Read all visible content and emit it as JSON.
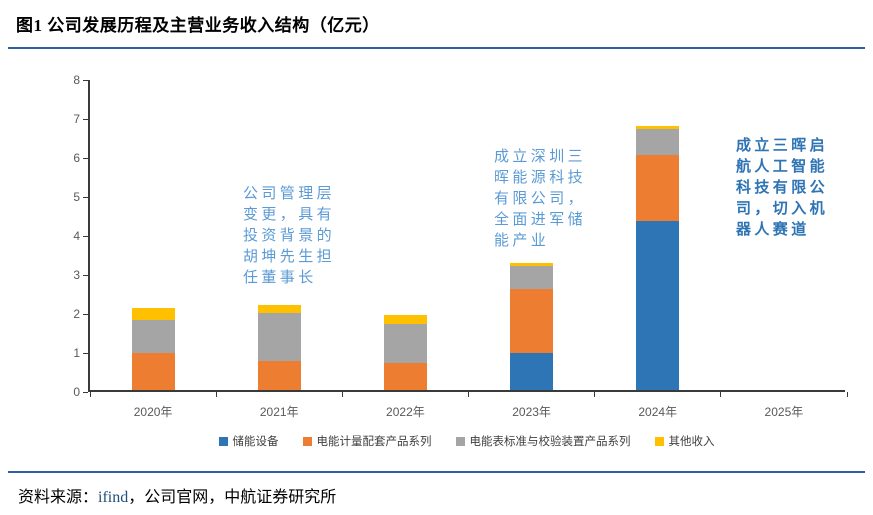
{
  "header": {
    "title": "图1  公司发展历程及主营业务收入结构（亿元）"
  },
  "chart_data": {
    "type": "bar",
    "stacked": true,
    "title": "公司发展历程及主营业务收入结构（亿元）",
    "categories": [
      "2020年",
      "2021年",
      "2022年",
      "2023年",
      "2024年",
      "2025年"
    ],
    "series": [
      {
        "name": "储能设备",
        "color": "#2E75B6",
        "values": [
          0,
          0,
          0,
          0.95,
          4.33,
          0
        ]
      },
      {
        "name": "电能计量配套产品系列",
        "color": "#ED7D31",
        "values": [
          0.95,
          0.75,
          0.7,
          1.65,
          1.7,
          0
        ]
      },
      {
        "name": "电能表标准与校验装置产品系列",
        "color": "#A5A5A5",
        "values": [
          0.85,
          1.22,
          0.98,
          0.57,
          0.67,
          0
        ]
      },
      {
        "name": "其他收入",
        "color": "#FFC000",
        "values": [
          0.3,
          0.2,
          0.24,
          0.08,
          0.08,
          0
        ]
      }
    ],
    "ylim": [
      0,
      8
    ],
    "ytick_step": 1,
    "grid": false,
    "legend_position": "bottom"
  },
  "annotations": [
    {
      "text": "公司管理层变更，具有投资背景的胡坤先生担任董事长",
      "color": "#5B9BD5",
      "bold": false
    },
    {
      "text": "成立深圳三晖能源科技有限公司，全面进军储能产业",
      "color": "#5B9BD5",
      "bold": false
    },
    {
      "text": "成立三晖启航人工智能科技有限公司，切入机器人赛道",
      "color": "#2E74B5",
      "bold": true
    }
  ],
  "footer": {
    "prefix": "资料来源：",
    "highlight": "ifind",
    "rest": "，公司官网，中航证券研究所"
  },
  "colors": {
    "divider": "#2E5FA3",
    "axis": "#3a3a3a",
    "tick_label": "#595959",
    "annotation_light": "#5B9BD5",
    "annotation_dark": "#2E74B5"
  }
}
